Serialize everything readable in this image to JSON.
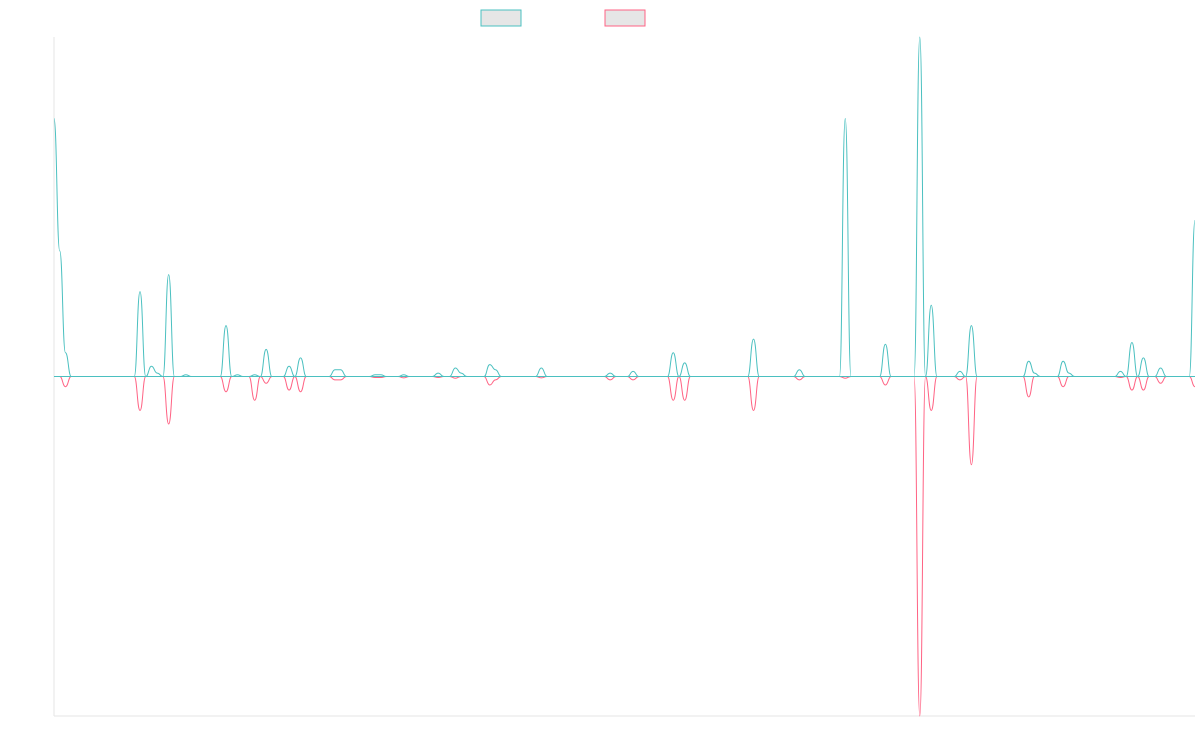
{
  "chart_data": {
    "type": "line",
    "title": "",
    "xlabel": "",
    "ylabel": "",
    "ylim": [
      -1,
      1
    ],
    "grid": false,
    "legend": "top-center",
    "x_count": 200,
    "series": [
      {
        "name": "",
        "color": "#4bc0c0",
        "fill": "#e6e6e6",
        "spikes": [
          [
            0,
            0.76
          ],
          [
            1,
            0.37
          ],
          [
            2,
            0.07
          ],
          [
            15,
            0.25
          ],
          [
            17,
            0.03
          ],
          [
            18,
            0.01
          ],
          [
            20,
            0.3
          ],
          [
            23,
            0.005
          ],
          [
            30,
            0.15
          ],
          [
            32,
            0.005
          ],
          [
            35,
            0.005
          ],
          [
            37,
            0.08
          ],
          [
            41,
            0.03
          ],
          [
            43,
            0.055
          ],
          [
            49,
            0.02
          ],
          [
            50,
            0.02
          ],
          [
            56,
            0.005
          ],
          [
            57,
            0.005
          ],
          [
            61,
            0.005
          ],
          [
            67,
            0.01
          ],
          [
            70,
            0.025
          ],
          [
            71,
            0.01
          ],
          [
            76,
            0.035
          ],
          [
            77,
            0.02
          ],
          [
            85,
            0.025
          ],
          [
            97,
            0.01
          ],
          [
            101,
            0.015
          ],
          [
            108,
            0.07
          ],
          [
            110,
            0.04
          ],
          [
            122,
            0.11
          ],
          [
            130,
            0.02
          ],
          [
            138,
            0.76
          ],
          [
            145,
            0.095
          ],
          [
            151,
            1.0
          ],
          [
            153,
            0.21
          ],
          [
            158,
            0.015
          ],
          [
            160,
            0.15
          ],
          [
            170,
            0.045
          ],
          [
            171,
            0.01
          ],
          [
            176,
            0.045
          ],
          [
            177,
            0.01
          ],
          [
            186,
            0.015
          ],
          [
            188,
            0.1
          ],
          [
            190,
            0.055
          ],
          [
            193,
            0.025
          ],
          [
            199,
            0.46
          ]
        ]
      },
      {
        "name": "",
        "color": "#ff6384",
        "fill": "#e6e6e6",
        "spikes": [
          [
            2,
            -0.03
          ],
          [
            15,
            -0.1
          ],
          [
            20,
            -0.14
          ],
          [
            30,
            -0.045
          ],
          [
            35,
            -0.07
          ],
          [
            37,
            -0.02
          ],
          [
            41,
            -0.04
          ],
          [
            43,
            -0.045
          ],
          [
            49,
            -0.01
          ],
          [
            50,
            -0.01
          ],
          [
            56,
            -0.003
          ],
          [
            57,
            -0.003
          ],
          [
            61,
            -0.004
          ],
          [
            67,
            -0.003
          ],
          [
            70,
            -0.005
          ],
          [
            76,
            -0.025
          ],
          [
            77,
            -0.01
          ],
          [
            85,
            -0.004
          ],
          [
            97,
            -0.01
          ],
          [
            101,
            -0.01
          ],
          [
            108,
            -0.07
          ],
          [
            110,
            -0.07
          ],
          [
            122,
            -0.1
          ],
          [
            130,
            -0.01
          ],
          [
            138,
            -0.005
          ],
          [
            145,
            -0.025
          ],
          [
            151,
            -1.0
          ],
          [
            153,
            -0.1
          ],
          [
            158,
            -0.01
          ],
          [
            160,
            -0.26
          ],
          [
            170,
            -0.06
          ],
          [
            176,
            -0.03
          ],
          [
            186,
            -0.003
          ],
          [
            188,
            -0.04
          ],
          [
            190,
            -0.04
          ],
          [
            193,
            -0.02
          ],
          [
            199,
            -0.03
          ]
        ]
      }
    ]
  }
}
